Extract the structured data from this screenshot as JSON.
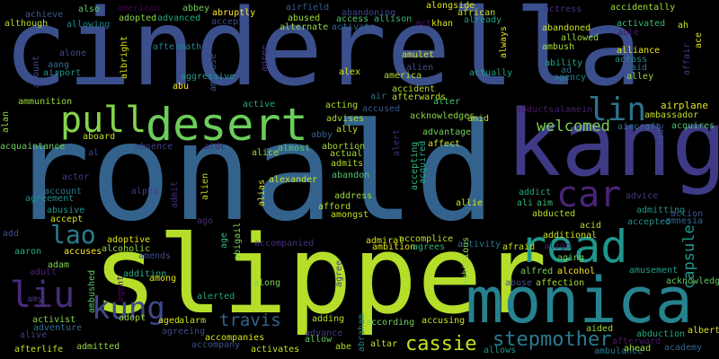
{
  "background_color": "#000000",
  "words": [
    {
      "key": "cinderella",
      "text": "cinderella",
      "color": "#3b4f8c"
    },
    {
      "key": "ronald",
      "text": "ronald",
      "color": "#33638d"
    },
    {
      "key": "slipper",
      "text": "slipper",
      "color": "#b5de2b"
    },
    {
      "key": "kang",
      "text": "kang",
      "color": "#3e3a85"
    },
    {
      "key": "monica",
      "text": "monica",
      "color": "#26828e"
    },
    {
      "key": "desert",
      "text": "desert",
      "color": "#6ccd5a"
    },
    {
      "key": "pull",
      "text": "pull",
      "color": "#84d44b"
    },
    {
      "key": "read",
      "text": "read",
      "color": "#1f968b"
    },
    {
      "key": "car",
      "text": "car",
      "color": "#482576"
    },
    {
      "key": "lin",
      "text": "lin",
      "color": "#2c738e"
    },
    {
      "key": "liu",
      "text": "liu",
      "color": "#472c7a"
    },
    {
      "key": "kung",
      "text": "kung",
      "color": "#3f4889"
    },
    {
      "key": "lao",
      "text": "lao",
      "color": "#287d8e"
    },
    {
      "key": "cassie",
      "text": "cassie",
      "color": "#c8e020"
    },
    {
      "key": "stepmother",
      "text": "stepmother",
      "color": "#297b8e"
    },
    {
      "key": "travis",
      "text": "travis",
      "color": "#32648e"
    },
    {
      "key": "welcomed",
      "text": "welcomed",
      "color": "#7ad151"
    },
    {
      "key": "capsule",
      "text": "capsule",
      "color": "#1f988b"
    },
    {
      "key": "airplane",
      "text": "airplane",
      "color": "#e2e418"
    },
    {
      "key": "ambassador",
      "text": "ambassador",
      "color": "#bddf26"
    },
    {
      "key": "aircraft",
      "text": "aircraft",
      "color": "#2a768e"
    },
    {
      "key": "acquires",
      "text": "acquires",
      "color": "#4ac16d"
    },
    {
      "key": "alameda",
      "text": "alamein",
      "color": "#482071"
    },
    {
      "key": "abducts",
      "text": "abducts",
      "color": "#481a6c"
    },
    {
      "key": "achieve",
      "text": "achieve",
      "color": "#38588c"
    },
    {
      "key": "also",
      "text": "also",
      "color": "#5ec962"
    },
    {
      "key": "american",
      "text": "american",
      "color": "#440154"
    },
    {
      "key": "although",
      "text": "although",
      "color": "#b8de29"
    },
    {
      "key": "allowing",
      "text": "allowing",
      "color": "#24868e"
    },
    {
      "key": "adopted",
      "text": "adopted",
      "color": "#8bd646"
    },
    {
      "key": "advanced",
      "text": "advanced",
      "color": "#22a884"
    },
    {
      "key": "abbey",
      "text": "abbey",
      "color": "#6ece58"
    },
    {
      "key": "abruptly",
      "text": "abruptly",
      "color": "#fde725"
    },
    {
      "key": "accepts",
      "text": "accepts",
      "color": "#3e4989"
    },
    {
      "key": "airfield",
      "text": "airfield",
      "color": "#365c8d"
    },
    {
      "key": "abused",
      "text": "abused",
      "color": "#a2da37"
    },
    {
      "key": "abandoning",
      "text": "abandoning",
      "color": "#404688"
    },
    {
      "key": "access",
      "text": "access",
      "color": "#52c569"
    },
    {
      "key": "allison",
      "text": "allison",
      "color": "#35b779"
    },
    {
      "key": "alongside",
      "text": "alongside",
      "color": "#dde318"
    },
    {
      "key": "african",
      "text": "african",
      "color": "#c5e021"
    },
    {
      "key": "already",
      "text": "already",
      "color": "#1f9e89"
    },
    {
      "key": "actress",
      "text": "actress",
      "color": "#46337f"
    },
    {
      "key": "accidentally",
      "text": "accidentally",
      "color": "#a0da39"
    },
    {
      "key": "activated",
      "text": "activated",
      "color": "#3aba76"
    },
    {
      "key": "ah",
      "text": "ah",
      "color": "#d0e11c"
    },
    {
      "key": "ace",
      "text": "ace",
      "color": "#d5e21a"
    },
    {
      "key": "able",
      "text": "able",
      "color": "#481769"
    },
    {
      "key": "alternate",
      "text": "alternate",
      "color": "#90d743"
    },
    {
      "key": "activate",
      "text": "activate",
      "color": "#34618d"
    },
    {
      "key": "act",
      "text": "act",
      "color": "#48186a"
    },
    {
      "key": "khan",
      "text": "khan",
      "color": "#d2e21b"
    },
    {
      "key": "abandoned",
      "text": "abandoned",
      "color": "#cde11d"
    },
    {
      "key": "allowed",
      "text": "allowed",
      "color": "#95d840"
    },
    {
      "key": "alliance",
      "text": "alliance",
      "color": "#e7e419"
    },
    {
      "key": "across",
      "text": "across",
      "color": "#20928c"
    },
    {
      "key": "aid",
      "text": "aid",
      "color": "#2c728e"
    },
    {
      "key": "alley",
      "text": "alley",
      "color": "#9dd93b"
    },
    {
      "key": "affair",
      "text": "affair",
      "color": "#453781"
    },
    {
      "key": "ambush",
      "text": "ambush",
      "color": "#a5db36"
    },
    {
      "key": "ability",
      "text": "ability",
      "color": "#21a685"
    },
    {
      "key": "ad",
      "text": "ad",
      "color": "#2d708e"
    },
    {
      "key": "agency",
      "text": "agency",
      "color": "#25838e"
    },
    {
      "key": "aftermath",
      "text": "aftermath",
      "color": "#26828e"
    },
    {
      "key": "albright",
      "text": "albright",
      "color": "#d8e219"
    },
    {
      "key": "alone",
      "text": "alone",
      "color": "#3e4c8a"
    },
    {
      "key": "aang",
      "text": "aang",
      "color": "#2f6c8e"
    },
    {
      "key": "airport",
      "text": "airport",
      "color": "#1f948c"
    },
    {
      "key": "amount",
      "text": "amount",
      "color": "#3f4788"
    },
    {
      "key": "aggressive",
      "text": "aggressive",
      "color": "#1f9a8a"
    },
    {
      "key": "agree",
      "text": "agree",
      "color": "#472f7d"
    },
    {
      "key": "ambrose",
      "text": "ambrose",
      "color": "#39568c"
    },
    {
      "key": "abu",
      "text": "abu",
      "color": "#fde725"
    },
    {
      "key": "active",
      "text": "active",
      "color": "#25ac82"
    },
    {
      "key": "amulet",
      "text": "amulet",
      "color": "#c2df23"
    },
    {
      "key": "alien",
      "text": "alien",
      "color": "#3b528b"
    },
    {
      "key": "alex",
      "text": "alex",
      "color": "#dae319"
    },
    {
      "key": "america",
      "text": "america",
      "color": "#b0dd2f"
    },
    {
      "key": "accident",
      "text": "accident",
      "color": "#b2dd2d"
    },
    {
      "key": "afterwards",
      "text": "afterwards",
      "color": "#bade28"
    },
    {
      "key": "air",
      "text": "air",
      "color": "#2e6e8e"
    },
    {
      "key": "actually",
      "text": "actually",
      "color": "#1fa088"
    },
    {
      "key": "always",
      "text": "always",
      "color": "#dfe318"
    },
    {
      "key": "alter",
      "text": "alter",
      "color": "#42be71"
    },
    {
      "key": "ammunition",
      "text": "ammunition",
      "color": "#9bd93c"
    },
    {
      "key": "alan",
      "text": "alan",
      "color": "#8ed645"
    },
    {
      "key": "acting",
      "text": "acting",
      "color": "#aadc32"
    },
    {
      "key": "accused",
      "text": "accused",
      "color": "#38598c"
    },
    {
      "key": "acknowledges",
      "text": "acknowledges",
      "color": "#8bd646"
    },
    {
      "key": "amid",
      "text": "amid",
      "color": "#c0df25"
    },
    {
      "key": "advises",
      "text": "advises",
      "color": "#a8db34"
    },
    {
      "key": "ally",
      "text": "ally",
      "color": "#b8de29"
    },
    {
      "key": "abby",
      "text": "abby",
      "color": "#34608d"
    },
    {
      "key": "aboard",
      "text": "aboard",
      "color": "#c0df25"
    },
    {
      "key": "acquaintance",
      "text": "acquaintance",
      "color": "#6ccd5a"
    },
    {
      "key": "absence",
      "text": "absence",
      "color": "#404387"
    },
    {
      "key": "aldc",
      "text": "aldc",
      "color": "#481f70"
    },
    {
      "key": "al",
      "text": "al",
      "color": "#3f4889"
    },
    {
      "key": "alice",
      "text": "alice",
      "color": "#9fda3a"
    },
    {
      "key": "almost",
      "text": "almost",
      "color": "#5cc863"
    },
    {
      "key": "abortion",
      "text": "abortion",
      "color": "#a2da37"
    },
    {
      "key": "actual",
      "text": "actual",
      "color": "#a8db34"
    },
    {
      "key": "admits",
      "text": "admits",
      "color": "#b5de2b"
    },
    {
      "key": "affect",
      "text": "affect",
      "color": "#cae11f"
    },
    {
      "key": "advantage",
      "text": "advantage",
      "color": "#70cf57"
    },
    {
      "key": "alert",
      "text": "alert",
      "color": "#472a7a"
    },
    {
      "key": "accepting",
      "text": "accepting",
      "color": "#37b878"
    },
    {
      "key": "acquired",
      "text": "acquired",
      "color": "#24aa83"
    },
    {
      "key": "actor",
      "text": "actor",
      "color": "#443a83"
    },
    {
      "key": "alexander",
      "text": "alexander",
      "color": "#c5e021"
    },
    {
      "key": "abandon",
      "text": "abandon",
      "color": "#4ec36b"
    },
    {
      "key": "alpha",
      "text": "alpha",
      "color": "#443983"
    },
    {
      "key": "alien2",
      "text": "alien",
      "color": "#c0df25"
    },
    {
      "key": "admit",
      "text": "admit",
      "color": "#482878"
    },
    {
      "key": "account",
      "text": "account",
      "color": "#2a788e"
    },
    {
      "key": "agreement",
      "text": "agreement",
      "color": "#228c8d"
    },
    {
      "key": "abusive",
      "text": "abusive",
      "color": "#1f958b"
    },
    {
      "key": "accept",
      "text": "accept",
      "color": "#d8e219"
    },
    {
      "key": "alias",
      "text": "alias",
      "color": "#dae319"
    },
    {
      "key": "afford",
      "text": "afford",
      "color": "#b0dd2f"
    },
    {
      "key": "address",
      "text": "address",
      "color": "#9bd93c"
    },
    {
      "key": "amongst",
      "text": "amongst",
      "color": "#c2df23"
    },
    {
      "key": "allie",
      "text": "allie",
      "color": "#d2e21b"
    },
    {
      "key": "addict",
      "text": "addict",
      "color": "#22a785"
    },
    {
      "key": "ali",
      "text": "ali",
      "color": "#35b779"
    },
    {
      "key": "aim",
      "text": "aim",
      "color": "#3dbc74"
    },
    {
      "key": "advice",
      "text": "advice",
      "color": "#443983"
    },
    {
      "key": "aide",
      "text": "aide",
      "color": "#3a548c"
    },
    {
      "key": "abducted",
      "text": "abducted",
      "color": "#b5de2b"
    },
    {
      "key": "admitting",
      "text": "admitting",
      "color": "#1f978b"
    },
    {
      "key": "accepted",
      "text": "accepted",
      "color": "#21918c"
    },
    {
      "key": "action",
      "text": "action",
      "color": "#3b528b"
    },
    {
      "key": "amnesia",
      "text": "amnesia",
      "color": "#31678e"
    },
    {
      "key": "ago",
      "text": "ago",
      "color": "#472d7b"
    },
    {
      "key": "add",
      "text": "add",
      "color": "#3d4d8a"
    },
    {
      "key": "adoptive",
      "text": "adoptive",
      "color": "#dde318"
    },
    {
      "key": "alcoholic",
      "text": "alcoholic",
      "color": "#93d741"
    },
    {
      "key": "age",
      "text": "age",
      "color": "#31b57b"
    },
    {
      "key": "abigail",
      "text": "abigail",
      "color": "#7ad151"
    },
    {
      "key": "accompanied",
      "text": "accompanied",
      "color": "#46307e"
    },
    {
      "key": "admiral",
      "text": "admiral",
      "color": "#d8e219"
    },
    {
      "key": "accomplice",
      "text": "accomplice",
      "color": "#bade28"
    },
    {
      "key": "ambition",
      "text": "ambition",
      "color": "#e5e419"
    },
    {
      "key": "agrees",
      "text": "agrees",
      "color": "#2db27d"
    },
    {
      "key": "activity",
      "text": "activity",
      "color": "#2a788e"
    },
    {
      "key": "afraid",
      "text": "afraid",
      "color": "#c5e021"
    },
    {
      "key": "align",
      "text": "align",
      "color": "#481b6d"
    },
    {
      "key": "acid",
      "text": "acid",
      "color": "#b2dd2d"
    },
    {
      "key": "additional",
      "text": "additional",
      "color": "#cae11f"
    },
    {
      "key": "aaron",
      "text": "aaron",
      "color": "#26ad81"
    },
    {
      "key": "accuses",
      "text": "accuses",
      "color": "#fde725"
    },
    {
      "key": "amends",
      "text": "amends",
      "color": "#3d4e8a"
    },
    {
      "key": "ambitious",
      "text": "ambitious",
      "color": "#90d743"
    },
    {
      "key": "adam",
      "text": "adam",
      "color": "#7fd34e"
    },
    {
      "key": "adult",
      "text": "adult",
      "color": "#482475"
    },
    {
      "key": "addition",
      "text": "addition",
      "color": "#27ad81"
    },
    {
      "key": "among",
      "text": "among",
      "color": "#e1e418"
    },
    {
      "key": "along",
      "text": "along",
      "color": "#7ad151"
    },
    {
      "key": "alfred",
      "text": "alfred",
      "color": "#73d056"
    },
    {
      "key": "alcohol",
      "text": "alcohol",
      "color": "#fde725"
    },
    {
      "key": "amusement",
      "text": "amusement",
      "color": "#1fa188"
    },
    {
      "key": "acknowledge",
      "text": "acknowledge",
      "color": "#5ec962"
    },
    {
      "key": "abuse",
      "text": "abuse",
      "color": "#3b528b"
    },
    {
      "key": "affection",
      "text": "affection",
      "color": "#a5db36"
    },
    {
      "key": "ambushed",
      "text": "ambushed",
      "color": "#58c765"
    },
    {
      "key": "agent",
      "text": "agent",
      "color": "#460a5d"
    },
    {
      "key": "amy",
      "text": "amy",
      "color": "#453882"
    },
    {
      "key": "alerted",
      "text": "alerted",
      "color": "#20a386"
    },
    {
      "key": "adopt",
      "text": "adopt",
      "color": "#95d840"
    },
    {
      "key": "aged",
      "text": "aged",
      "color": "#d8e219"
    },
    {
      "key": "alarm",
      "text": "alarm",
      "color": "#c5e021"
    },
    {
      "key": "agree2",
      "text": "agree",
      "color": "#404588"
    },
    {
      "key": "adding",
      "text": "adding",
      "color": "#b5de2b"
    },
    {
      "key": "abraham",
      "text": "abraham",
      "color": "#26818e"
    },
    {
      "key": "according",
      "text": "according",
      "color": "#70cf57"
    },
    {
      "key": "accusing",
      "text": "accusing",
      "color": "#c8e020"
    },
    {
      "key": "aided",
      "text": "aided",
      "color": "#9dd93b"
    },
    {
      "key": "abduction",
      "text": "abduction",
      "color": "#22a884"
    },
    {
      "key": "albert",
      "text": "albert",
      "color": "#d5e21a"
    },
    {
      "key": "activist",
      "text": "activist",
      "color": "#84d44b"
    },
    {
      "key": "adventure",
      "text": "adventure",
      "color": "#2e6f8e"
    },
    {
      "key": "agreeing",
      "text": "agreeing",
      "color": "#3e4a89"
    },
    {
      "key": "alive",
      "text": "alive",
      "color": "#414287"
    },
    {
      "key": "afterlife",
      "text": "afterlife",
      "color": "#c2df23"
    },
    {
      "key": "admitted",
      "text": "admitted",
      "color": "#93d741"
    },
    {
      "key": "accompany",
      "text": "accompany",
      "color": "#3b518b"
    },
    {
      "key": "accompanies",
      "text": "accompanies",
      "color": "#dae319"
    },
    {
      "key": "activates",
      "text": "activates",
      "color": "#c8e020"
    },
    {
      "key": "advance",
      "text": "advance",
      "color": "#453781"
    },
    {
      "key": "allow",
      "text": "allow",
      "color": "#5ec962"
    },
    {
      "key": "abe",
      "text": "abe",
      "color": "#b0dd2f"
    },
    {
      "key": "altar",
      "text": "altar",
      "color": "#c5e021"
    },
    {
      "key": "allows",
      "text": "allows",
      "color": "#1f958b"
    },
    {
      "key": "ambulance",
      "text": "ambulance",
      "color": "#2a778e"
    },
    {
      "key": "ahead",
      "text": "ahead",
      "color": "#9dd93b"
    },
    {
      "key": "afterward",
      "text": "afterward",
      "color": "#481769"
    },
    {
      "key": "academy",
      "text": "academy",
      "color": "#33628d"
    },
    {
      "key": "aging",
      "text": "aging",
      "color": "#6ece58"
    }
  ]
}
